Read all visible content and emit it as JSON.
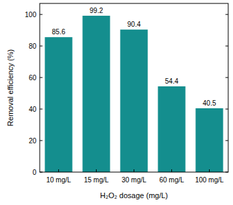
{
  "chart_data": {
    "type": "bar",
    "x_label": "H₂O₂ dosage (mg/L)",
    "y_label": "Removal efficiency (%)",
    "categories": [
      "10 mg/L",
      "15 mg/L",
      "30 mg/L",
      "60 mg/L",
      "100 mg/L"
    ],
    "values": [
      85.6,
      99.2,
      90.4,
      54.4,
      40.5
    ],
    "color": "#148e8e",
    "ylim": [
      0,
      107
    ],
    "yticks": [
      0,
      20,
      40,
      60,
      80,
      100
    ],
    "grid": false,
    "data_labels": true
  }
}
